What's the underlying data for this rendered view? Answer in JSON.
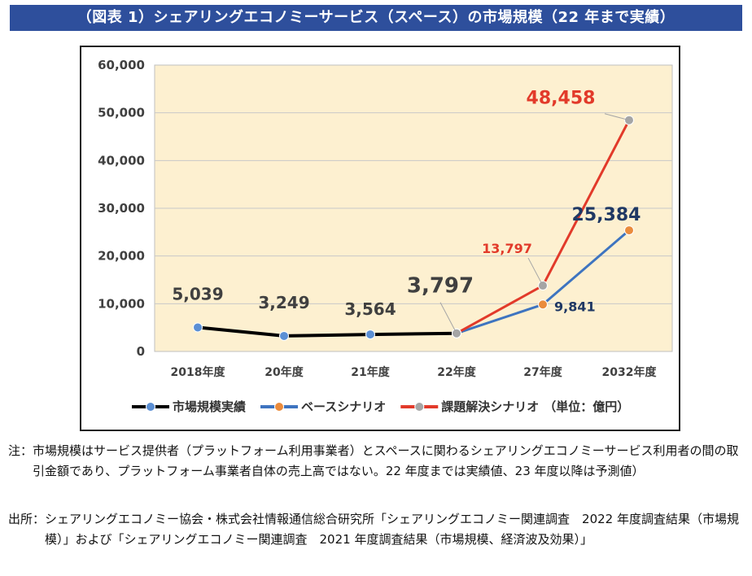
{
  "header": {
    "title": "（図表 1）シェアリングエコノミーサービス（スペース）の市場規模（22 年まで実績）"
  },
  "chart_data": {
    "type": "line",
    "categories": [
      "2018年度",
      "20年度",
      "21年度",
      "22年度",
      "27年度",
      "2032年度"
    ],
    "y_ticks": [
      "0",
      "10,000",
      "20,000",
      "30,000",
      "40,000",
      "50,000",
      "60,000"
    ],
    "ylim": [
      0,
      60000
    ],
    "unit_note": "（単位：億円）",
    "plot_background": "#fdf0d0",
    "grid": true,
    "legend_position": "bottom",
    "series": [
      {
        "name": "市場規模実績",
        "line_color": "#000000",
        "marker_color": "#5b8fd4",
        "values": [
          5039,
          3249,
          3564,
          3797,
          null,
          null
        ],
        "labels": [
          "5,039",
          "3,249",
          "3,564",
          "3,797",
          "",
          ""
        ]
      },
      {
        "name": "ベースシナリオ",
        "line_color": "#3e74c0",
        "marker_color": "#ea8b3c",
        "values": [
          null,
          null,
          null,
          3797,
          9841,
          25384
        ],
        "labels": [
          "",
          "",
          "",
          "",
          "9,841",
          "25,384"
        ]
      },
      {
        "name": "課題解決シナリオ",
        "line_color": "#e23a2a",
        "marker_color": "#a5a5a5",
        "values": [
          null,
          null,
          null,
          3797,
          13797,
          48458
        ],
        "labels": [
          "",
          "",
          "",
          "",
          "13,797",
          "48,458"
        ]
      }
    ]
  },
  "notes": [
    {
      "label": "注：",
      "text": "市場規模はサービス提供者（プラットフォーム利用事業者）とスペースに関わるシェアリングエコノミーサービス利用者の間の取引金額であり、プラットフォーム事業者自体の売上高ではない。22 年度までは実績値、23 年度以降は予測値）"
    },
    {
      "label": "出所：",
      "text": "シェアリングエコノミー協会・株式会社情報通信総合研究所「シェアリングエコノミー関連調査　2022 年度調査結果（市場規模）」および「シェアリングエコノミー関連調査　2021 年度調査結果（市場規模、経済波及効果）」"
    }
  ]
}
